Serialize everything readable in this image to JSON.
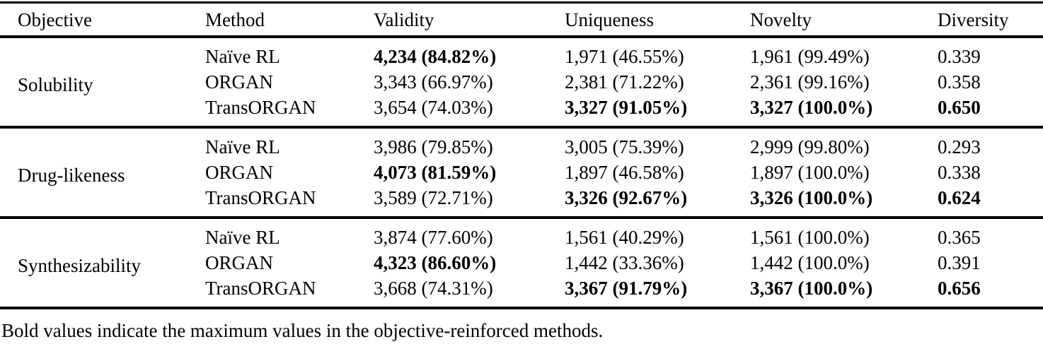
{
  "colors": {
    "background": "#ffffff",
    "text": "#000000",
    "rule": "#000000"
  },
  "table": {
    "columns": [
      "Objective",
      "Method",
      "Validity",
      "Uniqueness",
      "Novelty",
      "Diversity"
    ],
    "sections": [
      {
        "objective": "Solubility",
        "rows": [
          {
            "method": "Naïve RL",
            "cells": [
              {
                "text": "4,234 (84.82%)",
                "bold": true
              },
              {
                "text": "1,971 (46.55%)",
                "bold": false
              },
              {
                "text": "1,961 (99.49%)",
                "bold": false
              },
              {
                "text": "0.339",
                "bold": false
              }
            ]
          },
          {
            "method": "ORGAN",
            "cells": [
              {
                "text": "3,343 (66.97%)",
                "bold": false
              },
              {
                "text": "2,381 (71.22%)",
                "bold": false
              },
              {
                "text": "2,361 (99.16%)",
                "bold": false
              },
              {
                "text": "0.358",
                "bold": false
              }
            ]
          },
          {
            "method": "TransORGAN",
            "cells": [
              {
                "text": "3,654 (74.03%)",
                "bold": false
              },
              {
                "text": "3,327 (91.05%)",
                "bold": true
              },
              {
                "text": "3,327 (100.0%)",
                "bold": true
              },
              {
                "text": "0.650",
                "bold": true
              }
            ]
          }
        ]
      },
      {
        "objective": "Drug-likeness",
        "rows": [
          {
            "method": "Naïve RL",
            "cells": [
              {
                "text": "3,986 (79.85%)",
                "bold": false
              },
              {
                "text": "3,005 (75.39%)",
                "bold": false
              },
              {
                "text": "2,999 (99.80%)",
                "bold": false
              },
              {
                "text": "0.293",
                "bold": false
              }
            ]
          },
          {
            "method": "ORGAN",
            "cells": [
              {
                "text": "4,073 (81.59%)",
                "bold": true
              },
              {
                "text": "1,897 (46.58%)",
                "bold": false
              },
              {
                "text": "1,897 (100.0%)",
                "bold": false
              },
              {
                "text": "0.338",
                "bold": false
              }
            ]
          },
          {
            "method": "TransORGAN",
            "cells": [
              {
                "text": "3,589 (72.71%)",
                "bold": false
              },
              {
                "text": "3,326 (92.67%)",
                "bold": true
              },
              {
                "text": "3,326 (100.0%)",
                "bold": true
              },
              {
                "text": "0.624",
                "bold": true
              }
            ]
          }
        ]
      },
      {
        "objective": "Synthesizability",
        "rows": [
          {
            "method": "Naïve RL",
            "cells": [
              {
                "text": "3,874 (77.60%)",
                "bold": false
              },
              {
                "text": "1,561 (40.29%)",
                "bold": false
              },
              {
                "text": "1,561 (100.0%)",
                "bold": false
              },
              {
                "text": "0.365",
                "bold": false
              }
            ]
          },
          {
            "method": "ORGAN",
            "cells": [
              {
                "text": "4,323 (86.60%)",
                "bold": true
              },
              {
                "text": "1,442 (33.36%)",
                "bold": false
              },
              {
                "text": "1,442 (100.0%)",
                "bold": false
              },
              {
                "text": "0.391",
                "bold": false
              }
            ]
          },
          {
            "method": "TransORGAN",
            "cells": [
              {
                "text": "3,668 (74.31%)",
                "bold": false
              },
              {
                "text": "3,367 (91.79%)",
                "bold": true
              },
              {
                "text": "3,367 (100.0%)",
                "bold": true
              },
              {
                "text": "0.656",
                "bold": true
              }
            ]
          }
        ]
      }
    ]
  },
  "footnote": "Bold values indicate the maximum values in the objective-reinforced methods."
}
